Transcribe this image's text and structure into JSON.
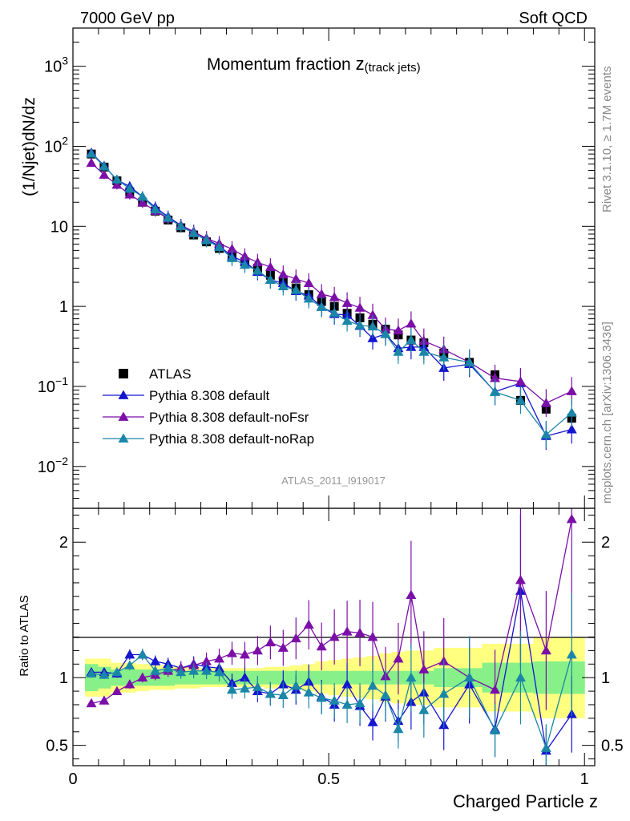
{
  "header": {
    "left": "7000 GeV pp",
    "right": "Soft QCD"
  },
  "plot_title": {
    "main": "Momentum fraction ",
    "symbol": "z",
    "subscript": "(track jets)"
  },
  "side_labels": {
    "rivet": "Rivet 3.1.10, ≥ 1.7M events",
    "mcplots": "mcplots.cern.ch [arXiv:1306.3436]"
  },
  "analysis_id": "ATLAS_2011_I919017",
  "colors": {
    "data": "#000000",
    "default": "#1515d0",
    "noFsr": "#7b0fa8",
    "noRap": "#1a86a8",
    "band_inner": "#88f088",
    "band_outer": "#ffff80"
  },
  "chart_data": [
    {
      "type": "scatter",
      "panel": "main",
      "ylabel": "(1/Njet)dN/dz",
      "yscale": "log",
      "ylim": [
        0.003,
        3000
      ],
      "xlim": [
        0,
        1.02
      ],
      "y_ticks": [
        {
          "label": "10",
          "sup": "3"
        },
        {
          "label": "10",
          "sup": "2"
        },
        {
          "label": "10",
          "sup": ""
        },
        {
          "label": "1",
          "sup": ""
        },
        {
          "label": "10",
          "sup": "−1"
        },
        {
          "label": "10",
          "sup": "−2"
        }
      ],
      "legend": {
        "placement": "bottom-left"
      },
      "x": [
        0.036,
        0.061,
        0.086,
        0.111,
        0.136,
        0.161,
        0.186,
        0.211,
        0.236,
        0.261,
        0.286,
        0.311,
        0.336,
        0.361,
        0.386,
        0.411,
        0.436,
        0.461,
        0.486,
        0.511,
        0.536,
        0.561,
        0.586,
        0.611,
        0.636,
        0.661,
        0.686,
        0.725,
        0.775,
        0.825,
        0.875,
        0.925,
        0.975
      ],
      "series": [
        {
          "name": "ATLAS",
          "key": "data",
          "marker": "square",
          "values": [
            80,
            55,
            37,
            27,
            20,
            15.5,
            12,
            9.6,
            7.8,
            6.4,
            5.3,
            4.4,
            3.6,
            3.0,
            2.45,
            2.05,
            1.7,
            1.4,
            1.15,
            1.0,
            0.82,
            0.72,
            0.6,
            0.52,
            0.44,
            0.38,
            0.35,
            0.26,
            0.2,
            0.14,
            0.067,
            0.052,
            0.04
          ]
        },
        {
          "name": "Pythia 8.308 default",
          "key": "default",
          "marker": "triangle",
          "values": [
            83,
            57,
            38,
            31.5,
            23.5,
            17.3,
            13.2,
            10.3,
            8.6,
            6.9,
            5.7,
            4.2,
            3.6,
            2.7,
            2.15,
            1.95,
            1.55,
            1.36,
            0.99,
            0.8,
            0.78,
            0.57,
            0.4,
            0.45,
            0.3,
            0.31,
            0.31,
            0.17,
            0.19,
            0.086,
            0.11,
            0.024,
            0.029
          ]
        },
        {
          "name": "Pythia 8.308 default-noFsr",
          "key": "noFsr",
          "marker": "triangle",
          "values": [
            62,
            44,
            33,
            25,
            19.8,
            15.6,
            12.5,
            10.2,
            8.5,
            7.1,
            6.1,
            5.2,
            4.2,
            3.55,
            3.1,
            2.5,
            2.2,
            1.95,
            1.42,
            1.3,
            1.1,
            0.96,
            0.78,
            0.52,
            0.5,
            0.61,
            0.37,
            0.29,
            0.2,
            0.127,
            0.115,
            0.062,
            0.087
          ]
        },
        {
          "name": "Pythia 8.308 default-noRap",
          "key": "noRap",
          "marker": "triangle",
          "values": [
            81,
            56,
            38.5,
            29.5,
            23.5,
            16.3,
            12.8,
            10.0,
            8.2,
            6.7,
            5.5,
            4.0,
            3.3,
            2.8,
            2.15,
            1.78,
            1.6,
            1.25,
            0.98,
            0.83,
            0.66,
            0.58,
            0.56,
            0.45,
            0.27,
            0.38,
            0.27,
            0.23,
            0.2,
            0.085,
            0.067,
            0.025,
            0.047
          ]
        }
      ]
    },
    {
      "type": "scatter",
      "panel": "ratio",
      "ylabel": "Ratio to ATLAS",
      "xlabel": "Charged Particle z",
      "ylim": [
        0.35,
        2.25
      ],
      "xlim": [
        0,
        1.02
      ],
      "x_ticks": [
        "0",
        "0.5",
        "1"
      ],
      "y_ticks": [
        "0.5",
        "1",
        "2"
      ],
      "series": [
        {
          "name": "Pythia 8.308 default",
          "key": "default",
          "values": [
            1.04,
            1.04,
            1.03,
            1.17,
            1.17,
            1.12,
            1.1,
            1.07,
            1.1,
            1.08,
            1.07,
            0.96,
            1.0,
            0.9,
            0.88,
            0.95,
            0.91,
            0.97,
            0.86,
            0.8,
            0.95,
            0.79,
            0.67,
            0.86,
            0.68,
            0.82,
            0.89,
            0.65,
            0.95,
            0.62,
            1.64,
            0.46,
            0.73
          ]
        },
        {
          "name": "Pythia 8.308 default-noFsr",
          "key": "noFsr",
          "values": [
            0.81,
            0.83,
            0.9,
            0.95,
            1.0,
            1.02,
            1.05,
            1.07,
            1.09,
            1.12,
            1.14,
            1.18,
            1.17,
            1.2,
            1.26,
            1.22,
            1.29,
            1.39,
            1.23,
            1.3,
            1.34,
            1.33,
            1.3,
            1.01,
            1.14,
            1.61,
            1.06,
            1.12,
            1.0,
            0.91,
            1.72,
            1.2,
            2.17
          ]
        },
        {
          "name": "Pythia 8.308 default-noRap",
          "key": "noRap",
          "values": [
            1.03,
            1.02,
            1.04,
            1.09,
            1.17,
            1.05,
            1.07,
            1.04,
            1.05,
            1.05,
            1.04,
            0.91,
            0.92,
            0.93,
            0.88,
            0.87,
            0.94,
            0.89,
            0.85,
            0.83,
            0.8,
            0.81,
            0.94,
            0.87,
            0.62,
            1.0,
            0.76,
            0.88,
            1.0,
            0.61,
            1.0,
            0.48,
            1.17
          ]
        }
      ],
      "band_inner": [
        0.1,
        0.08,
        0.06,
        0.06,
        0.06,
        0.06,
        0.06,
        0.05,
        0.05,
        0.05,
        0.05,
        0.05,
        0.05,
        0.05,
        0.05,
        0.05,
        0.05,
        0.05,
        0.05,
        0.05,
        0.05,
        0.05,
        0.05,
        0.05,
        0.05,
        0.05,
        0.05,
        0.07,
        0.07,
        0.11,
        0.11,
        0.12,
        0.12
      ],
      "band_outer": [
        0.14,
        0.14,
        0.11,
        0.11,
        0.1,
        0.09,
        0.09,
        0.08,
        0.08,
        0.07,
        0.07,
        0.07,
        0.07,
        0.07,
        0.08,
        0.08,
        0.09,
        0.1,
        0.12,
        0.13,
        0.14,
        0.15,
        0.16,
        0.18,
        0.19,
        0.2,
        0.2,
        0.22,
        0.22,
        0.25,
        0.25,
        0.3,
        0.3
      ]
    }
  ]
}
